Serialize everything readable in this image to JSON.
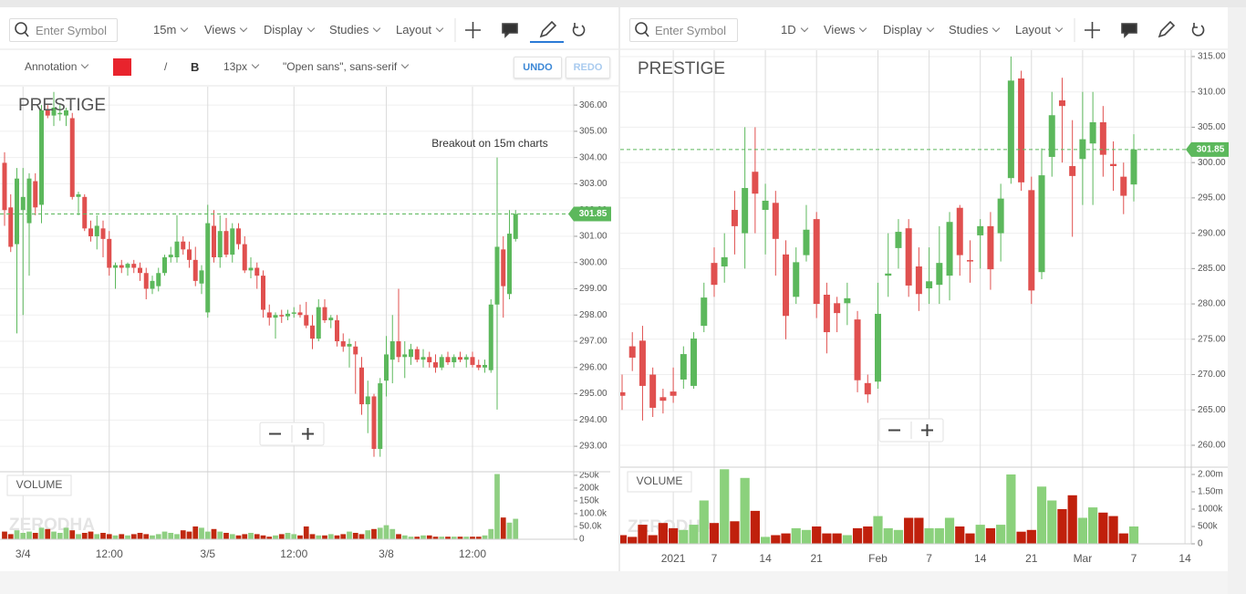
{
  "toolbars": {
    "left": {
      "search": "Enter Symbol",
      "interval": "15m",
      "menus": [
        "Views",
        "Display",
        "Studies",
        "Layout"
      ]
    },
    "annotation_bar": {
      "tool": "Annotation",
      "line_style": "/",
      "bold": "B",
      "font_size": "13px",
      "font_family": "\"Open sans\", sans-serif",
      "undo": "UNDO",
      "redo": "REDO"
    },
    "right": {
      "search": "Enter Symbol",
      "interval": "1D",
      "menus": [
        "Views",
        "Display",
        "Studies",
        "Layout"
      ]
    }
  },
  "chart_data": [
    {
      "type": "candlestick",
      "title": "PRESTIGE",
      "watermark": "ZERODHA",
      "annotation": "Breakout on 15m charts",
      "grid": true,
      "categories": [
        null,
        null,
        null,
        "3/4",
        null,
        null,
        null,
        null,
        null,
        null,
        null,
        null,
        null,
        null,
        null,
        null,
        null,
        "12:00",
        null,
        null,
        null,
        null,
        null,
        null,
        null,
        null,
        null,
        null,
        null,
        null,
        null,
        null,
        null,
        "3/5",
        null,
        null,
        null,
        null,
        null,
        null,
        null,
        null,
        null,
        null,
        null,
        null,
        null,
        "12:00",
        null,
        null,
        null,
        null,
        null,
        null,
        null,
        null,
        null,
        null,
        null,
        null,
        null,
        null,
        "3/8",
        null,
        null,
        null,
        null,
        null,
        null,
        null,
        null,
        null,
        null,
        null,
        null,
        null,
        "12:00",
        null,
        null,
        null,
        null,
        null,
        null,
        null
      ],
      "open": [
        303.8,
        302.1,
        300.7,
        302.0,
        301.5,
        303.1,
        302.2,
        305.8,
        305.6,
        305.7,
        305.6,
        305.5,
        302.5,
        302.5,
        301.3,
        301.0,
        301.3,
        300.9,
        299.8,
        299.9,
        299.8,
        299.95,
        299.8,
        299.6,
        299.0,
        299.1,
        299.6,
        300.2,
        300.2,
        300.8,
        300.5,
        300.1,
        299.2,
        298.1,
        301.4,
        300.2,
        301.2,
        300.3,
        301.3,
        300.7,
        299.7,
        299.8,
        299.5,
        298.1,
        297.9,
        298.0,
        297.95,
        298.1,
        298.1,
        298.0,
        297.6,
        297.1,
        298.3,
        297.8,
        297.8,
        297.0,
        296.8,
        296.8,
        296.0,
        294.6,
        294.9,
        292.9,
        295.5,
        296.3,
        297.0,
        296.4,
        296.4,
        296.7,
        296.3,
        296.4,
        296.2,
        296.0,
        296.4,
        296.2,
        296.4,
        296.3,
        296.4,
        296.1,
        296.0,
        295.9,
        298.4,
        300.5,
        298.8,
        300.9
      ],
      "high": [
        304.2,
        302.6,
        303.6,
        303.6,
        303.4,
        303.4,
        306.0,
        306.0,
        306.5,
        306.0,
        305.9,
        305.7,
        302.7,
        302.6,
        301.6,
        301.8,
        301.6,
        301.2,
        300.0,
        300.1,
        300.0,
        300.1,
        300.0,
        299.8,
        299.5,
        299.8,
        300.3,
        300.6,
        301.8,
        301.0,
        300.8,
        300.6,
        299.9,
        302.2,
        302.0,
        301.8,
        301.7,
        301.5,
        301.5,
        301.0,
        300.2,
        300.0,
        299.7,
        298.4,
        298.1,
        298.2,
        298.2,
        298.3,
        298.4,
        298.5,
        298.0,
        298.6,
        298.6,
        298.0,
        298.0,
        297.3,
        297.1,
        297.0,
        296.4,
        295.5,
        295.0,
        295.6,
        297.2,
        298.0,
        299.0,
        297.0,
        296.9,
        296.8,
        296.7,
        296.6,
        296.5,
        296.5,
        296.6,
        296.5,
        296.6,
        296.5,
        296.6,
        296.3,
        296.3,
        298.6,
        304.0,
        301.0,
        302.0,
        302.0
      ],
      "low": [
        301.4,
        300.4,
        297.3,
        298.0,
        299.5,
        301.8,
        301.5,
        305.5,
        305.2,
        305.4,
        305.2,
        302.4,
        301.8,
        301.2,
        300.8,
        300.5,
        300.2,
        299.5,
        299.0,
        299.6,
        299.5,
        299.6,
        299.3,
        298.6,
        298.8,
        298.9,
        299.5,
        300.0,
        300.0,
        300.3,
        299.8,
        299.1,
        298.8,
        297.9,
        300.0,
        299.8,
        300.2,
        300.0,
        300.5,
        299.6,
        299.4,
        299.0,
        297.9,
        297.6,
        297.1,
        297.7,
        297.8,
        297.9,
        297.9,
        297.5,
        296.7,
        297.0,
        297.7,
        297.5,
        296.8,
        296.6,
        296.0,
        295.0,
        294.2,
        293.5,
        292.6,
        292.6,
        294.9,
        295.4,
        296.2,
        295.6,
        296.1,
        296.2,
        296.0,
        296.0,
        295.8,
        295.9,
        296.1,
        296.0,
        296.2,
        296.0,
        296.0,
        295.9,
        295.8,
        295.8,
        294.4,
        297.9,
        298.6,
        300.8
      ],
      "close": [
        302.0,
        300.6,
        303.2,
        302.5,
        303.2,
        302.1,
        305.8,
        305.6,
        305.9,
        305.7,
        305.8,
        302.5,
        302.6,
        301.3,
        301.0,
        301.4,
        300.9,
        299.8,
        299.9,
        299.8,
        299.95,
        299.8,
        299.6,
        299.0,
        299.3,
        299.6,
        300.2,
        300.3,
        300.8,
        300.5,
        300.1,
        299.3,
        299.7,
        301.5,
        300.2,
        301.2,
        300.3,
        301.3,
        300.7,
        299.7,
        299.8,
        299.5,
        298.2,
        297.9,
        298.0,
        297.95,
        298.05,
        298.1,
        298.0,
        297.6,
        297.1,
        298.3,
        297.8,
        297.9,
        297.0,
        296.8,
        296.9,
        296.5,
        294.6,
        294.9,
        292.9,
        295.4,
        296.5,
        297.0,
        296.4,
        296.5,
        296.7,
        296.3,
        296.4,
        296.2,
        296.0,
        296.4,
        296.2,
        296.4,
        296.3,
        296.4,
        296.1,
        296.0,
        296.1,
        298.4,
        300.6,
        299.1,
        301.1,
        301.85
      ],
      "up_color": "#5cb85c",
      "down_color": "#e0504f",
      "last_price": 301.85,
      "ylim": [
        292.03,
        306.7
      ],
      "yticks": [
        {
          "value": 293,
          "label": "293.00"
        },
        {
          "value": 294,
          "label": "294.00"
        },
        {
          "value": 295,
          "label": "295.00"
        },
        {
          "value": 296,
          "label": "296.00"
        },
        {
          "value": 297,
          "label": "297.00"
        },
        {
          "value": 298,
          "label": "298.00"
        },
        {
          "value": 299,
          "label": "299.00"
        },
        {
          "value": 300,
          "label": "300.00"
        },
        {
          "value": 301,
          "label": "301.00"
        },
        {
          "value": 302,
          "label": "302.00"
        },
        {
          "value": 303,
          "label": "303.00"
        },
        {
          "value": 304,
          "label": "304.00"
        },
        {
          "value": 305,
          "label": "305.00"
        },
        {
          "value": 306,
          "label": "306.00"
        }
      ],
      "volume": {
        "title": "VOLUME",
        "up_color": "#8fcf82",
        "down_color": "#c0280f",
        "values": [
          30000,
          20000,
          35000,
          25000,
          30000,
          25000,
          45000,
          40000,
          30000,
          25000,
          45000,
          35000,
          20000,
          25000,
          30000,
          20000,
          25000,
          20000,
          15000,
          20000,
          15000,
          20000,
          25000,
          20000,
          15000,
          20000,
          30000,
          25000,
          20000,
          35000,
          30000,
          50000,
          45000,
          30000,
          40000,
          30000,
          25000,
          20000,
          15000,
          20000,
          25000,
          20000,
          15000,
          10000,
          15000,
          20000,
          25000,
          20000,
          15000,
          50000,
          20000,
          15000,
          15000,
          20000,
          15000,
          20000,
          30000,
          25000,
          20000,
          35000,
          40000,
          45000,
          55000,
          40000,
          20000,
          15000,
          10000,
          10000,
          15000,
          15000,
          10000,
          10000,
          10000,
          10000,
          10000,
          10000,
          10000,
          10000,
          15000,
          40000,
          255000,
          85000,
          65000,
          80000
        ],
        "ylim": [
          0,
          264000
        ],
        "yticks": [
          {
            "value": 0,
            "label": "0"
          },
          {
            "value": 50000,
            "label": "50.0k"
          },
          {
            "value": 100000,
            "label": "100.0k"
          },
          {
            "value": 150000,
            "label": "150k"
          },
          {
            "value": 200000,
            "label": "200k"
          },
          {
            "value": 250000,
            "label": "250k"
          }
        ]
      }
    },
    {
      "type": "candlestick",
      "title": "PRESTIGE",
      "watermark": "ZERODHA",
      "grid": true,
      "categories": [
        null,
        null,
        null,
        null,
        null,
        "2021",
        null,
        null,
        null,
        "7",
        null,
        null,
        null,
        null,
        "14",
        null,
        null,
        null,
        null,
        "21",
        null,
        null,
        null,
        null,
        null,
        "Feb",
        null,
        null,
        null,
        null,
        "7",
        null,
        null,
        null,
        null,
        "14",
        null,
        null,
        null,
        null,
        "21",
        null,
        null,
        null,
        null,
        "Mar",
        null,
        null,
        null,
        null,
        "7",
        null,
        null,
        null,
        null,
        "14"
      ],
      "open": [
        267.5,
        274,
        274.8,
        270,
        266.8,
        267.6,
        269.3,
        268.4,
        276.9,
        285.8,
        285.3,
        293.3,
        290,
        298.7,
        293.3,
        294.3,
        287,
        281,
        286.9,
        292,
        281.3,
        280.1,
        280.1,
        277.8,
        268.8,
        269,
        284,
        287.9,
        290.7,
        285.3,
        282.2,
        282.7,
        284,
        293.6,
        286.2,
        289.7,
        291,
        290,
        297.8,
        311.9,
        296.1,
        284.5,
        300.8,
        308.8,
        299.5,
        300.5,
        302.7,
        305.7,
        299.8,
        298,
        296.9,
        null,
        null,
        null,
        null,
        null
      ],
      "high": [
        270,
        276,
        276.9,
        271,
        268,
        271,
        274,
        276,
        283,
        288,
        290,
        296,
        305,
        305,
        297,
        296,
        289,
        288,
        294,
        293,
        283,
        281,
        283,
        279,
        270,
        283,
        290,
        292,
        292,
        288,
        288,
        291,
        293,
        294,
        289,
        292,
        293,
        297,
        315,
        313,
        298,
        302,
        310,
        312,
        306,
        310,
        310,
        308,
        303,
        300,
        304,
        null,
        null,
        null,
        null,
        null
      ],
      "low": [
        265,
        270.5,
        263.5,
        264,
        264.5,
        266,
        268,
        268,
        276,
        281,
        283,
        287,
        285,
        290,
        287,
        284,
        275,
        280,
        286,
        278,
        273,
        276,
        277,
        267.5,
        266,
        268,
        281,
        285,
        281,
        279,
        280,
        280,
        280.5,
        284,
        283,
        285,
        282,
        286,
        297,
        296,
        280,
        283.5,
        298,
        300,
        289.5,
        294,
        294,
        298,
        296,
        292.7,
        294.5,
        null,
        null,
        null,
        null,
        null
      ],
      "close": [
        267.0,
        272.4,
        268.4,
        265.3,
        266.3,
        267.0,
        272.9,
        275.1,
        280.9,
        282.7,
        286.6,
        291.0,
        296.4,
        295.6,
        294.6,
        289.2,
        278.3,
        285.9,
        290.5,
        280,
        276,
        278.7,
        280.8,
        269.2,
        267.2,
        278.6,
        284.3,
        290.2,
        282.6,
        281.4,
        283.2,
        285.8,
        291.6,
        286.9,
        286.0,
        291,
        284.9,
        294.9,
        311.6,
        297.2,
        281.9,
        298.2,
        306.7,
        308.0,
        298.1,
        303.3,
        305.7,
        301.1,
        299.5,
        295.3,
        301.85,
        null,
        null,
        null,
        null,
        null
      ],
      "up_color": "#5cb85c",
      "down_color": "#e0504f",
      "last_price": 301.85,
      "ylim": [
        256.9,
        315.9
      ],
      "yticks": [
        {
          "value": 260,
          "label": "260.00"
        },
        {
          "value": 265,
          "label": "265.00"
        },
        {
          "value": 270,
          "label": "270.00"
        },
        {
          "value": 275,
          "label": "275.00"
        },
        {
          "value": 280,
          "label": "280.00"
        },
        {
          "value": 285,
          "label": "285.00"
        },
        {
          "value": 290,
          "label": "290.00"
        },
        {
          "value": 295,
          "label": "295.00"
        },
        {
          "value": 300,
          "label": "300.00"
        },
        {
          "value": 305,
          "label": "305.00"
        },
        {
          "value": 310,
          "label": "310.00"
        },
        {
          "value": 315,
          "label": "315.00"
        }
      ],
      "volume": {
        "title": "VOLUME",
        "up_color": "#8bd17c",
        "down_color": "#c0200c",
        "values": [
          250000,
          200000,
          550000,
          250000,
          600000,
          450000,
          400000,
          550000,
          1250000,
          600000,
          2150000,
          650000,
          1900000,
          950000,
          200000,
          250000,
          300000,
          450000,
          400000,
          500000,
          300000,
          300000,
          250000,
          450000,
          500000,
          800000,
          450000,
          400000,
          750000,
          750000,
          450000,
          450000,
          750000,
          500000,
          300000,
          550000,
          450000,
          550000,
          2000000,
          350000,
          400000,
          1650000,
          1250000,
          1000000,
          1400000,
          750000,
          1050000,
          900000,
          800000,
          300000,
          500000,
          null,
          null,
          null,
          null,
          null
        ],
        "ylim": [
          0,
          2210000
        ],
        "yticks": [
          {
            "value": 0,
            "label": "0"
          },
          {
            "value": 500000,
            "label": "500k"
          },
          {
            "value": 1000000,
            "label": "1000k"
          },
          {
            "value": 1500000,
            "label": "1.50m"
          },
          {
            "value": 2000000,
            "label": "2.00m"
          }
        ]
      }
    }
  ]
}
